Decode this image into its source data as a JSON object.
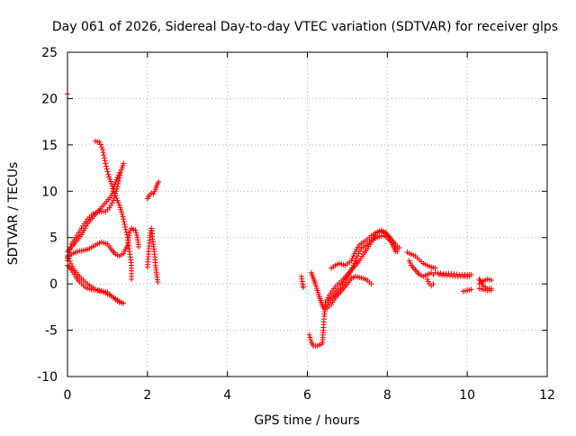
{
  "chart_data": {
    "type": "scatter",
    "title": "Day 061 of 2026, Sidereal Day-to-day VTEC variation (SDTVAR) for receiver glps",
    "xlabel": "GPS time / hours",
    "ylabel": "SDTVAR / TECUs",
    "xlim": [
      0,
      12
    ],
    "ylim": [
      -10,
      25
    ],
    "xticks": [
      0,
      2,
      4,
      6,
      8,
      10,
      12
    ],
    "yticks": [
      -10,
      -5,
      0,
      5,
      10,
      15,
      20,
      25
    ],
    "grid": true,
    "marker": "+",
    "marker_color": "#ff0000",
    "series": [
      {
        "name": "SDTVAR",
        "segments": [
          [
            [
              0.0,
              20.5
            ]
          ],
          [
            [
              0.0,
              2.5
            ],
            [
              0.1,
              4.3
            ],
            [
              0.2,
              5.0
            ],
            [
              0.35,
              6.0
            ],
            [
              0.5,
              7.0
            ],
            [
              0.65,
              7.6
            ],
            [
              0.8,
              7.8
            ],
            [
              0.95,
              7.8
            ],
            [
              1.05,
              8.2
            ],
            [
              1.15,
              9.0
            ],
            [
              1.25,
              10.5
            ],
            [
              1.35,
              12.3
            ],
            [
              1.4,
              13.0
            ]
          ],
          [
            [
              0.7,
              15.4
            ],
            [
              0.8,
              15.3
            ],
            [
              0.88,
              14.5
            ],
            [
              0.95,
              13.0
            ],
            [
              1.02,
              11.8
            ],
            [
              1.1,
              10.8
            ],
            [
              1.2,
              9.5
            ],
            [
              1.3,
              8.5
            ],
            [
              1.4,
              7.0
            ],
            [
              1.5,
              5.0
            ],
            [
              1.55,
              3.5
            ],
            [
              1.6,
              2.0
            ],
            [
              1.6,
              0.5
            ]
          ],
          [
            [
              0.0,
              3.5
            ],
            [
              0.1,
              4.0
            ],
            [
              0.2,
              4.5
            ],
            [
              0.35,
              5.3
            ],
            [
              0.5,
              6.5
            ],
            [
              0.7,
              7.5
            ],
            [
              0.9,
              8.5
            ],
            [
              1.1,
              9.5
            ],
            [
              1.2,
              11.0
            ],
            [
              1.3,
              12.0
            ]
          ],
          [
            [
              0.0,
              2.8
            ],
            [
              0.1,
              3.2
            ],
            [
              0.25,
              3.5
            ],
            [
              0.4,
              3.6
            ],
            [
              0.55,
              3.8
            ],
            [
              0.7,
              4.2
            ],
            [
              0.85,
              4.5
            ],
            [
              1.0,
              4.3
            ],
            [
              1.1,
              3.7
            ],
            [
              1.2,
              3.2
            ],
            [
              1.3,
              3.0
            ],
            [
              1.4,
              3.3
            ],
            [
              1.5,
              4.2
            ],
            [
              1.55,
              5.5
            ],
            [
              1.6,
              6.0
            ],
            [
              1.7,
              5.8
            ],
            [
              1.75,
              5.0
            ],
            [
              1.78,
              4.0
            ]
          ],
          [
            [
              0.0,
              2.0
            ],
            [
              0.1,
              1.5
            ],
            [
              0.2,
              0.8
            ],
            [
              0.3,
              0.2
            ],
            [
              0.45,
              -0.4
            ],
            [
              0.6,
              -0.6
            ],
            [
              0.75,
              -0.7
            ],
            [
              0.9,
              -0.8
            ],
            [
              1.0,
              -0.9
            ],
            [
              1.1,
              -1.3
            ],
            [
              1.2,
              -1.7
            ],
            [
              1.3,
              -2.0
            ],
            [
              1.4,
              -2.1
            ]
          ],
          [
            [
              0.0,
              3.0
            ],
            [
              0.15,
              1.6
            ],
            [
              0.3,
              0.8
            ],
            [
              0.5,
              0.0
            ],
            [
              0.7,
              -0.6
            ],
            [
              0.9,
              -0.9
            ],
            [
              1.05,
              -1.2
            ],
            [
              1.2,
              -1.6
            ],
            [
              1.35,
              -2.0
            ]
          ],
          [
            [
              2.0,
              1.8
            ],
            [
              2.03,
              3.5
            ],
            [
              2.06,
              5.0
            ],
            [
              2.1,
              6.0
            ],
            [
              2.13,
              4.8
            ],
            [
              2.17,
              3.5
            ],
            [
              2.2,
              2.0
            ],
            [
              2.23,
              1.0
            ],
            [
              2.26,
              0.2
            ]
          ],
          [
            [
              2.0,
              9.2
            ],
            [
              2.05,
              9.6
            ],
            [
              2.1,
              9.8
            ],
            [
              2.15,
              9.7
            ],
            [
              2.2,
              10.2
            ],
            [
              2.25,
              10.8
            ],
            [
              2.28,
              11.0
            ]
          ],
          [
            [
              5.85,
              0.8
            ],
            [
              5.88,
              0.0
            ],
            [
              5.9,
              -0.4
            ]
          ],
          [
            [
              6.1,
              1.2
            ],
            [
              6.15,
              0.6
            ],
            [
              6.2,
              0.0
            ],
            [
              6.25,
              -0.7
            ],
            [
              6.3,
              -1.4
            ],
            [
              6.35,
              -2.0
            ],
            [
              6.4,
              -2.6
            ],
            [
              6.5,
              -2.6
            ],
            [
              6.6,
              -2.2
            ],
            [
              6.7,
              -1.5
            ],
            [
              6.8,
              -1.0
            ],
            [
              6.9,
              -0.5
            ],
            [
              7.0,
              0.0
            ],
            [
              7.1,
              0.6
            ],
            [
              7.2,
              0.8
            ],
            [
              7.3,
              0.7
            ],
            [
              7.4,
              0.6
            ],
            [
              7.5,
              0.4
            ],
            [
              7.6,
              0.0
            ]
          ],
          [
            [
              6.05,
              -5.5
            ],
            [
              6.1,
              -6.3
            ],
            [
              6.15,
              -6.7
            ],
            [
              6.25,
              -6.7
            ],
            [
              6.35,
              -6.5
            ]
          ],
          [
            [
              6.38,
              -6.3
            ],
            [
              6.4,
              -5.0
            ],
            [
              6.42,
              -3.5
            ],
            [
              6.45,
              -2.5
            ],
            [
              6.55,
              -1.8
            ],
            [
              6.65,
              -1.2
            ],
            [
              6.8,
              -0.5
            ],
            [
              6.95,
              0.4
            ],
            [
              7.05,
              1.0
            ],
            [
              7.15,
              2.0
            ],
            [
              7.25,
              3.0
            ],
            [
              7.35,
              3.8
            ],
            [
              7.5,
              4.3
            ],
            [
              7.65,
              4.8
            ],
            [
              7.8,
              5.1
            ],
            [
              7.9,
              5.2
            ],
            [
              8.0,
              5.0
            ],
            [
              8.1,
              4.5
            ],
            [
              8.2,
              3.5
            ]
          ],
          [
            [
              6.45,
              -2.0
            ],
            [
              6.55,
              -1.2
            ],
            [
              6.7,
              -0.3
            ],
            [
              6.9,
              0.5
            ],
            [
              7.0,
              1.0
            ],
            [
              7.1,
              1.5
            ],
            [
              7.2,
              2.0
            ],
            [
              7.3,
              2.5
            ],
            [
              7.4,
              3.2
            ],
            [
              7.5,
              3.8
            ],
            [
              7.6,
              4.5
            ],
            [
              7.75,
              5.5
            ],
            [
              7.85,
              5.8
            ],
            [
              7.95,
              5.6
            ],
            [
              8.05,
              5.0
            ],
            [
              8.15,
              4.2
            ],
            [
              8.25,
              3.5
            ]
          ],
          [
            [
              6.6,
              1.7
            ],
            [
              6.7,
              2.0
            ],
            [
              6.8,
              2.2
            ],
            [
              6.95,
              2.0
            ],
            [
              7.1,
              2.5
            ],
            [
              7.2,
              3.5
            ],
            [
              7.3,
              4.2
            ],
            [
              7.4,
              4.5
            ],
            [
              7.5,
              4.8
            ],
            [
              7.6,
              5.2
            ],
            [
              7.7,
              5.5
            ],
            [
              7.8,
              5.7
            ],
            [
              7.9,
              5.5
            ],
            [
              8.0,
              5.3
            ],
            [
              8.1,
              4.8
            ],
            [
              8.2,
              4.3
            ],
            [
              8.3,
              3.9
            ]
          ],
          [
            [
              8.5,
              3.4
            ],
            [
              8.7,
              3.0
            ],
            [
              8.9,
              2.2
            ],
            [
              9.1,
              1.8
            ],
            [
              9.2,
              1.7
            ]
          ],
          [
            [
              8.55,
              2.5
            ],
            [
              8.6,
              2.0
            ],
            [
              8.7,
              1.5
            ],
            [
              8.8,
              1.0
            ],
            [
              8.9,
              0.8
            ],
            [
              9.0,
              1.0
            ],
            [
              9.1,
              1.2
            ],
            [
              9.15,
              1.0
            ]
          ],
          [
            [
              9.0,
              0.5
            ],
            [
              9.05,
              0.0
            ],
            [
              9.1,
              -0.2
            ],
            [
              9.15,
              0.0
            ]
          ],
          [
            [
              9.2,
              1.2
            ],
            [
              9.4,
              1.1
            ],
            [
              9.6,
              1.1
            ],
            [
              9.8,
              1.0
            ],
            [
              10.0,
              1.0
            ],
            [
              10.1,
              1.0
            ]
          ],
          [
            [
              9.3,
              1.0
            ],
            [
              9.5,
              0.9
            ],
            [
              9.7,
              0.8
            ],
            [
              9.9,
              0.8
            ],
            [
              10.05,
              0.8
            ]
          ],
          [
            [
              9.9,
              -0.8
            ],
            [
              10.0,
              -0.7
            ],
            [
              10.1,
              -0.6
            ]
          ],
          [
            [
              10.3,
              0.5
            ],
            [
              10.35,
              0.2
            ],
            [
              10.4,
              -0.2
            ],
            [
              10.5,
              -0.5
            ],
            [
              10.6,
              -0.5
            ]
          ],
          [
            [
              10.3,
              -0.5
            ],
            [
              10.4,
              -0.6
            ],
            [
              10.5,
              -0.7
            ],
            [
              10.6,
              -0.7
            ]
          ],
          [
            [
              10.3,
              0.0
            ],
            [
              10.4,
              0.3
            ],
            [
              10.5,
              0.5
            ],
            [
              10.6,
              0.4
            ]
          ]
        ]
      }
    ]
  }
}
